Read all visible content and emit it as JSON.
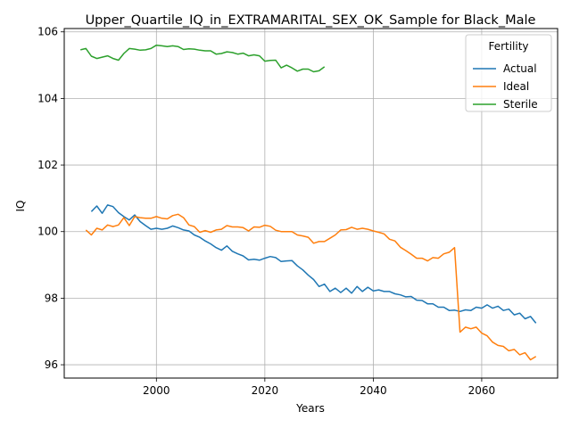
{
  "chart_data": {
    "type": "line",
    "title": "Upper_Quartile_IQ_in_EXTRAMARITAL_SEX_OK_Sample for Black_Male",
    "xlabel": "Years",
    "ylabel": "IQ",
    "xlim": [
      1983,
      2074
    ],
    "ylim": [
      95.6,
      106.1
    ],
    "xticks": [
      2000,
      2020,
      2040,
      2060
    ],
    "yticks": [
      96,
      98,
      100,
      102,
      104,
      106
    ],
    "grid": true,
    "legend": {
      "title": "Fertility",
      "placement": "top-right"
    },
    "series": [
      {
        "name": "Actual",
        "color": "#1f77b4",
        "x": [
          1988,
          1989,
          1990,
          1991,
          1992,
          1993,
          1994,
          1995,
          1996,
          1997,
          1998,
          1999,
          2000,
          2001,
          2002,
          2003,
          2004,
          2005,
          2006,
          2007,
          2008,
          2009,
          2010,
          2011,
          2012,
          2013,
          2014,
          2015,
          2016,
          2017,
          2018,
          2019,
          2020,
          2021,
          2022,
          2023,
          2024,
          2025,
          2026,
          2027,
          2028,
          2029,
          2030,
          2031,
          2032,
          2033,
          2034,
          2035,
          2036,
          2037,
          2038,
          2039,
          2040,
          2041,
          2042,
          2043,
          2044,
          2045,
          2046,
          2047,
          2048,
          2049,
          2050,
          2051,
          2052,
          2053,
          2054,
          2055,
          2056,
          2057,
          2058,
          2059,
          2060,
          2061,
          2062,
          2063,
          2064,
          2065,
          2066,
          2067,
          2068,
          2069,
          2070
        ],
        "y": [
          100.6,
          100.77,
          100.55,
          100.8,
          100.75,
          100.57,
          100.45,
          100.35,
          100.5,
          100.3,
          100.18,
          100.07,
          100.1,
          100.07,
          100.1,
          100.17,
          100.12,
          100.05,
          100.02,
          99.9,
          99.83,
          99.72,
          99.63,
          99.52,
          99.44,
          99.57,
          99.41,
          99.33,
          99.27,
          99.15,
          99.17,
          99.14,
          99.2,
          99.25,
          99.22,
          99.1,
          99.12,
          99.13,
          98.97,
          98.85,
          98.69,
          98.56,
          98.35,
          98.42,
          98.2,
          98.3,
          98.17,
          98.3,
          98.15,
          98.35,
          98.2,
          98.33,
          98.22,
          98.25,
          98.2,
          98.2,
          98.13,
          98.1,
          98.04,
          98.05,
          97.94,
          97.93,
          97.83,
          97.83,
          97.73,
          97.73,
          97.63,
          97.64,
          97.6,
          97.65,
          97.63,
          97.73,
          97.7,
          97.8,
          97.7,
          97.76,
          97.63,
          97.67,
          97.5,
          97.55,
          97.38,
          97.45,
          97.25
        ]
      },
      {
        "name": "Ideal",
        "color": "#ff7f0e",
        "x": [
          1987,
          1988,
          1989,
          1990,
          1991,
          1992,
          1993,
          1994,
          1995,
          1996,
          1997,
          1998,
          1999,
          2000,
          2001,
          2002,
          2003,
          2004,
          2005,
          2006,
          2007,
          2008,
          2009,
          2010,
          2011,
          2012,
          2013,
          2014,
          2015,
          2016,
          2017,
          2018,
          2019,
          2020,
          2021,
          2022,
          2023,
          2024,
          2025,
          2026,
          2027,
          2028,
          2029,
          2030,
          2031,
          2032,
          2033,
          2034,
          2035,
          2036,
          2037,
          2038,
          2039,
          2040,
          2041,
          2042,
          2043,
          2044,
          2045,
          2046,
          2047,
          2048,
          2049,
          2050,
          2051,
          2052,
          2053,
          2054,
          2055,
          2056,
          2057,
          2058,
          2059,
          2060,
          2061,
          2062,
          2063,
          2064,
          2065,
          2066,
          2067,
          2068,
          2069,
          2070
        ],
        "y": [
          100.05,
          99.9,
          100.1,
          100.05,
          100.2,
          100.15,
          100.2,
          100.42,
          100.18,
          100.45,
          100.42,
          100.4,
          100.4,
          100.45,
          100.4,
          100.38,
          100.48,
          100.52,
          100.42,
          100.2,
          100.15,
          99.98,
          100.03,
          99.98,
          100.05,
          100.07,
          100.18,
          100.14,
          100.14,
          100.12,
          100.02,
          100.14,
          100.13,
          100.19,
          100.16,
          100.04,
          100.0,
          100.0,
          100.0,
          99.9,
          99.87,
          99.83,
          99.65,
          99.7,
          99.7,
          99.8,
          99.9,
          100.05,
          100.06,
          100.13,
          100.07,
          100.1,
          100.07,
          100.02,
          99.98,
          99.93,
          99.77,
          99.72,
          99.53,
          99.43,
          99.32,
          99.2,
          99.2,
          99.12,
          99.22,
          99.2,
          99.33,
          99.38,
          99.52,
          96.98,
          97.13,
          97.08,
          97.13,
          96.95,
          96.87,
          96.68,
          96.58,
          96.55,
          96.42,
          96.46,
          96.3,
          96.36,
          96.15,
          96.25
        ]
      },
      {
        "name": "Sterile",
        "color": "#2ca02c",
        "x": [
          1986,
          1987,
          1988,
          1989,
          1990,
          1991,
          1992,
          1993,
          1994,
          1995,
          1996,
          1997,
          1998,
          1999,
          2000,
          2001,
          2002,
          2003,
          2004,
          2005,
          2006,
          2007,
          2008,
          2009,
          2010,
          2011,
          2012,
          2013,
          2014,
          2015,
          2016,
          2017,
          2018,
          2019,
          2020,
          2021,
          2022,
          2023,
          2024,
          2025,
          2026,
          2027,
          2028,
          2029,
          2030,
          2031
        ],
        "y": [
          105.46,
          105.5,
          105.27,
          105.2,
          105.24,
          105.28,
          105.2,
          105.15,
          105.35,
          105.5,
          105.48,
          105.45,
          105.46,
          105.5,
          105.6,
          105.58,
          105.56,
          105.58,
          105.56,
          105.47,
          105.49,
          105.48,
          105.45,
          105.43,
          105.43,
          105.33,
          105.35,
          105.4,
          105.38,
          105.33,
          105.36,
          105.28,
          105.31,
          105.28,
          105.12,
          105.14,
          105.15,
          104.92,
          105.0,
          104.92,
          104.82,
          104.88,
          104.88,
          104.8,
          104.83,
          104.95
        ]
      }
    ]
  }
}
